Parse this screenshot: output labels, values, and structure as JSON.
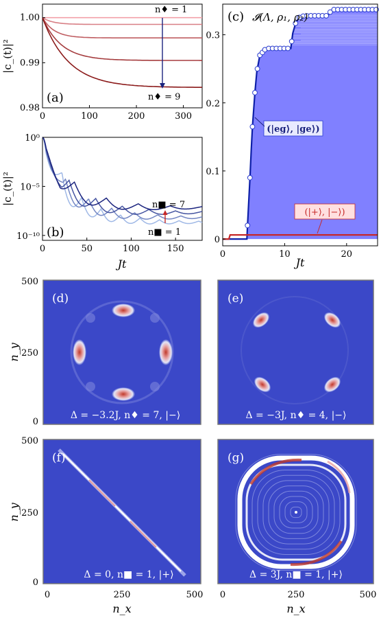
{
  "figure": {
    "colors": {
      "red_dark": "#8b1a1a",
      "red_light": "#f2a0a8",
      "blue_dark": "#1a237e",
      "blue_light": "#9fb8e6",
      "panel_c_fill": "#8080ff",
      "panel_c_line": "#0d1fa8",
      "panel_c_marker_edge": "#2a3ccf",
      "red_line": "#c62828",
      "map_bg": "#3b48c8",
      "map_hot": "#c0392b",
      "map_white": "#ffffff"
    }
  },
  "chart_data": [
    {
      "panel": "a",
      "type": "line",
      "panel_label": "(a)",
      "ylabel": "|c_(t)|²",
      "xlim": [
        0,
        340
      ],
      "ylim": [
        0.98,
        1.003
      ],
      "xticks": [
        "0",
        "100",
        "200",
        "300"
      ],
      "yticks": [
        "0.98",
        "0.99",
        "1.00"
      ],
      "annotation_top": "n♦ = 1",
      "annotation_bottom": "n♦ = 9",
      "series": [
        {
          "plateau": 1.0,
          "rate": 0.05
        },
        {
          "plateau": 0.9985,
          "rate": 0.045
        },
        {
          "plateau": 0.9955,
          "rate": 0.04
        },
        {
          "plateau": 0.9905,
          "rate": 0.025
        },
        {
          "plateau": 0.9845,
          "rate": 0.018
        }
      ]
    },
    {
      "panel": "b",
      "type": "line",
      "panel_label": "(b)",
      "ylabel": "|c_(t)|²",
      "xlabel": "Jt",
      "xlim": [
        0,
        180
      ],
      "ylim_log10": [
        -10.5,
        0
      ],
      "xticks": [
        "0",
        "50",
        "100",
        "150"
      ],
      "yticks": [
        "10⁰",
        "10⁻⁵",
        "10⁻¹⁰"
      ],
      "annotation_top": "n■ = 7",
      "annotation_bottom": "n■ = 1",
      "series": [
        {
          "final_log10": -8.6,
          "period": 22
        },
        {
          "final_log10": -8.1,
          "period": 26
        },
        {
          "final_log10": -7.6,
          "period": 30
        },
        {
          "final_log10": -7.1,
          "period": 36
        }
      ]
    },
    {
      "panel": "c",
      "type": "area",
      "panel_label": "(c)",
      "title": "𝓘(Λ, ρ₁, ρ₂)",
      "xlabel": "Jt",
      "xlim": [
        0,
        25
      ],
      "ylim": [
        -0.01,
        0.345
      ],
      "xticks": [
        "0",
        "10",
        "20"
      ],
      "yticks": [
        "0",
        "0.1",
        "0.2",
        "0.3"
      ],
      "legend_blue": "(|eg⟩, |ge⟩)",
      "legend_red": "(|+⟩, |−⟩)",
      "blue_curve": {
        "x": [
          0,
          3.9,
          4.0,
          4.2,
          4.4,
          4.6,
          4.8,
          5.0,
          5.2,
          5.5,
          6.0,
          7.0,
          11.0,
          11.3,
          11.8,
          12.5,
          14.0,
          17.0,
          17.3,
          17.8,
          25.0
        ],
        "y": [
          0,
          0,
          0.02,
          0.055,
          0.09,
          0.13,
          0.165,
          0.19,
          0.215,
          0.245,
          0.27,
          0.28,
          0.28,
          0.302,
          0.318,
          0.327,
          0.328,
          0.328,
          0.333,
          0.337,
          0.337
        ]
      },
      "red_curve": {
        "x": [
          0,
          1.0,
          1.2,
          25.0
        ],
        "y": [
          0,
          0,
          0.006,
          0.006
        ]
      }
    },
    {
      "panel": "d",
      "type": "heatmap",
      "panel_label": "(d)",
      "caption": "Δ = −3.2J, n♦ = 7, |−⟩",
      "ylabel": "n_y",
      "xlim": [
        0,
        500
      ],
      "ylim": [
        0,
        500
      ],
      "yticks": [
        "0",
        "250",
        "500"
      ]
    },
    {
      "panel": "e",
      "type": "heatmap",
      "panel_label": "(e)",
      "caption": "Δ = −3J, n♦ = 4, |−⟩",
      "xlim": [
        0,
        500
      ],
      "ylim": [
        0,
        500
      ]
    },
    {
      "panel": "f",
      "type": "heatmap",
      "panel_label": "(f)",
      "caption": "Δ = 0, n■ = 1, |+⟩",
      "ylabel": "n_y",
      "xlabel": "n_x",
      "xlim": [
        0,
        500
      ],
      "ylim": [
        0,
        500
      ],
      "xticks": [
        "0",
        "250",
        "500"
      ],
      "yticks": [
        "0",
        "250",
        "500"
      ]
    },
    {
      "panel": "g",
      "type": "heatmap",
      "panel_label": "(g)",
      "caption": "Δ = 3J, n■ = 1, |+⟩",
      "xlabel": "n_x",
      "xlim": [
        0,
        500
      ],
      "ylim": [
        0,
        500
      ],
      "xticks": [
        "0",
        "250",
        "500"
      ]
    }
  ]
}
